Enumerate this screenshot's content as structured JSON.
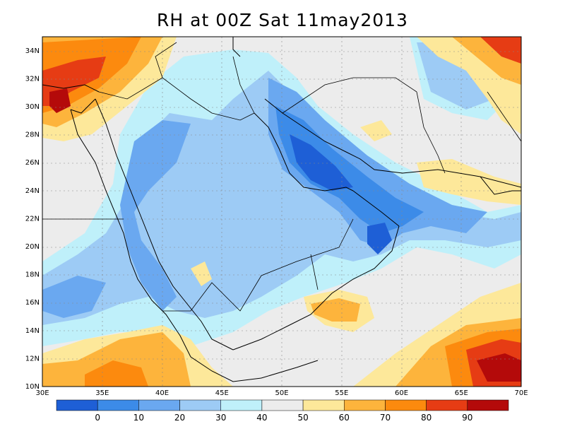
{
  "title": "RH at 00Z Sat 11may2013",
  "map": {
    "lon_ticks": [
      "30E",
      "35E",
      "40E",
      "45E",
      "50E",
      "55E",
      "60E",
      "65E",
      "70E"
    ],
    "lat_ticks": [
      "10N",
      "12N",
      "14N",
      "16N",
      "18N",
      "20N",
      "22N",
      "24N",
      "26N",
      "28N",
      "30N",
      "32N",
      "34N"
    ]
  },
  "colorbar": {
    "labels": [
      "0",
      "10",
      "20",
      "30",
      "40",
      "50",
      "60",
      "70",
      "80",
      "90"
    ],
    "colors": [
      "#1e5fd6",
      "#3c8be8",
      "#6aa8f0",
      "#9dcbf5",
      "#bff0fa",
      "#ececec",
      "#fde89a",
      "#fdb43c",
      "#fc8a0e",
      "#e63c14",
      "#b40a0a"
    ]
  }
}
